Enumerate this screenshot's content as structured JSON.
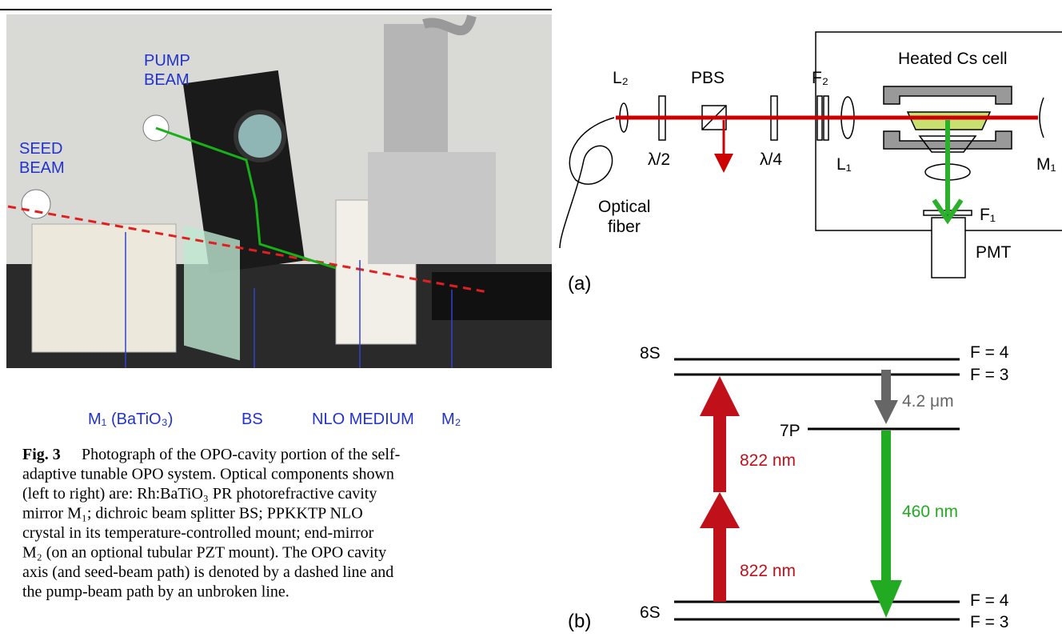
{
  "photo": {
    "pump_beam": [
      "PUMP",
      "BEAM"
    ],
    "seed_beam": [
      "SEED",
      "BEAM"
    ],
    "labels": [
      "M₁ (BaTiO₃)",
      "BS",
      "NLO MEDIUM",
      "M₂"
    ]
  },
  "caption": {
    "label": "Fig. 3",
    "lines": [
      "Photograph of the OPO-cavity portion of the self-",
      "adaptive tunable OPO system. Optical components shown",
      "(left to right) are: Rh:BaTiO₃ PR photorefractive cavity",
      "mirror M₁; dichroic beam splitter BS; PPKKTP NLO",
      "crystal in its temperature-controlled mount; end-mirror",
      "M₂ (on an optional tubular PZT mount). The OPO cavity",
      "axis (and seed-beam path) is denoted by a dashed line and",
      "the pump-beam path by an unbroken line."
    ]
  },
  "setup": {
    "panel": "(a)",
    "L2": "L₂",
    "PBS": "PBS",
    "F2": "F₂",
    "cell": "Heated Cs cell",
    "half_wave": "λ/2",
    "quarter_wave": "λ/4",
    "L1": "L₁",
    "M1": "M₁",
    "fiber": [
      "Optical",
      "fiber"
    ],
    "F1": "F₁",
    "PMT": "PMT"
  },
  "levels": {
    "panel": "(b)",
    "s8": "8S",
    "p7": "7P",
    "s6": "6S",
    "f_labels": [
      "F = 4",
      "F = 3",
      "F = 4",
      "F = 3"
    ],
    "ir": "4.2 μm",
    "red_upper": "822 nm",
    "red_lower": "822 nm",
    "blue": "460 nm"
  }
}
